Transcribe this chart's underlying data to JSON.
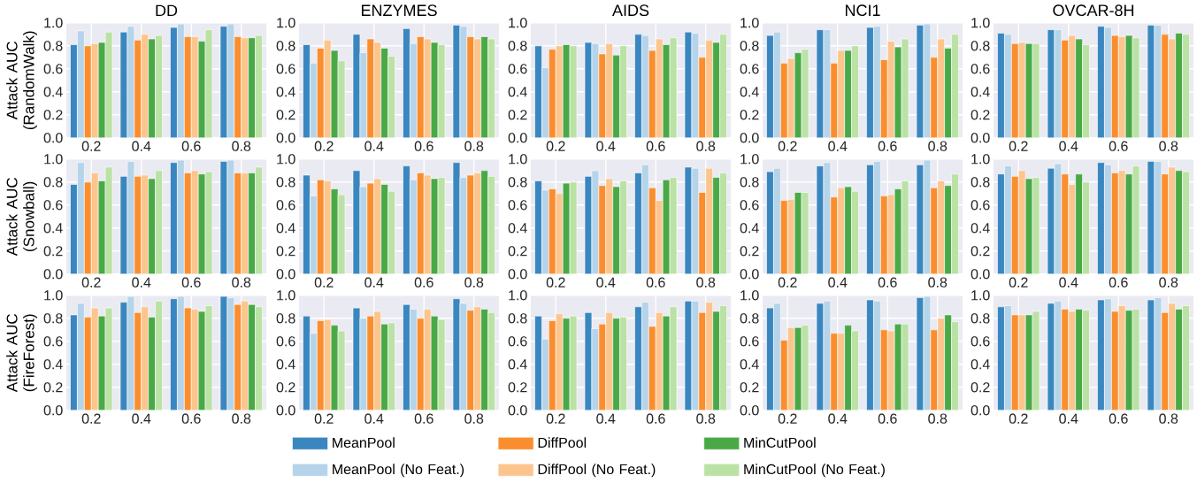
{
  "chart_data": [
    {
      "type": "bar",
      "title": "DD",
      "ylabel": "Attack AUC (RandomWalk)",
      "categories": [
        "0.2",
        "0.4",
        "0.6",
        "0.8"
      ],
      "ylim": [
        0,
        1
      ],
      "yticks": [
        {
          "value": 0,
          "label": "0.0"
        },
        {
          "value": 0.2,
          "label": "0.2"
        },
        {
          "value": 0.4,
          "label": "0.4"
        },
        {
          "value": 0.6,
          "label": "0.6"
        },
        {
          "value": 0.8,
          "label": "0.8"
        },
        {
          "value": 1,
          "label": "1.0"
        }
      ],
      "grid": true,
      "series": [
        {
          "color": "#3a87c0",
          "values": [
            0.81,
            0.92,
            0.96,
            0.97
          ]
        },
        {
          "color": "#b5d4ea",
          "values": [
            0.93,
            0.97,
            0.99,
            0.99
          ]
        },
        {
          "color": "#fa8e2e",
          "values": [
            0.8,
            0.85,
            0.88,
            0.88
          ]
        },
        {
          "color": "#fdc58e",
          "values": [
            0.82,
            0.9,
            0.88,
            0.87
          ]
        },
        {
          "color": "#4aa947",
          "values": [
            0.83,
            0.86,
            0.84,
            0.87
          ]
        },
        {
          "color": "#bbe2a5",
          "values": [
            0.92,
            0.89,
            0.94,
            0.89
          ]
        }
      ]
    },
    {
      "type": "bar",
      "title": "ENZYMES",
      "categories": [
        "0.2",
        "0.4",
        "0.6",
        "0.8"
      ],
      "ylim": [
        0,
        1
      ],
      "yticks": [
        {
          "value": 0,
          "label": "0.0"
        },
        {
          "value": 0.2,
          "label": "0.2"
        },
        {
          "value": 0.4,
          "label": "0.4"
        },
        {
          "value": 0.6,
          "label": "0.6"
        },
        {
          "value": 0.8,
          "label": "0.8"
        },
        {
          "value": 1,
          "label": "1.0"
        }
      ],
      "grid": true,
      "series": [
        {
          "color": "#3a87c0",
          "values": [
            0.81,
            0.9,
            0.95,
            0.98
          ]
        },
        {
          "color": "#b5d4ea",
          "values": [
            0.65,
            0.74,
            0.82,
            0.97
          ]
        },
        {
          "color": "#fa8e2e",
          "values": [
            0.78,
            0.86,
            0.88,
            0.88
          ]
        },
        {
          "color": "#fdc58e",
          "values": [
            0.85,
            0.83,
            0.86,
            0.86
          ]
        },
        {
          "color": "#4aa947",
          "values": [
            0.76,
            0.78,
            0.83,
            0.88
          ]
        },
        {
          "color": "#bbe2a5",
          "values": [
            0.67,
            0.71,
            0.81,
            0.86
          ]
        }
      ]
    },
    {
      "type": "bar",
      "title": "AIDS",
      "categories": [
        "0.2",
        "0.4",
        "0.6",
        "0.8"
      ],
      "ylim": [
        0,
        1
      ],
      "yticks": [
        {
          "value": 0,
          "label": "0.0"
        },
        {
          "value": 0.2,
          "label": "0.2"
        },
        {
          "value": 0.4,
          "label": "0.4"
        },
        {
          "value": 0.6,
          "label": "0.6"
        },
        {
          "value": 0.8,
          "label": "0.8"
        },
        {
          "value": 1,
          "label": "1.0"
        }
      ],
      "grid": true,
      "series": [
        {
          "color": "#3a87c0",
          "values": [
            0.8,
            0.83,
            0.9,
            0.92
          ]
        },
        {
          "color": "#b5d4ea",
          "values": [
            0.61,
            0.82,
            0.89,
            0.91
          ]
        },
        {
          "color": "#fa8e2e",
          "values": [
            0.77,
            0.73,
            0.76,
            0.7
          ]
        },
        {
          "color": "#fdc58e",
          "values": [
            0.8,
            0.82,
            0.86,
            0.85
          ]
        },
        {
          "color": "#4aa947",
          "values": [
            0.81,
            0.72,
            0.81,
            0.83
          ]
        },
        {
          "color": "#bbe2a5",
          "values": [
            0.8,
            0.8,
            0.87,
            0.9
          ]
        }
      ]
    },
    {
      "type": "bar",
      "title": "NCI1",
      "categories": [
        "0.2",
        "0.4",
        "0.6",
        "0.8"
      ],
      "ylim": [
        0,
        1
      ],
      "yticks": [
        {
          "value": 0,
          "label": "0.0"
        },
        {
          "value": 0.2,
          "label": "0.2"
        },
        {
          "value": 0.4,
          "label": "0.4"
        },
        {
          "value": 0.6,
          "label": "0.6"
        },
        {
          "value": 0.8,
          "label": "0.8"
        },
        {
          "value": 1,
          "label": "1.0"
        }
      ],
      "grid": true,
      "series": [
        {
          "color": "#3a87c0",
          "values": [
            0.89,
            0.94,
            0.96,
            0.98
          ]
        },
        {
          "color": "#b5d4ea",
          "values": [
            0.92,
            0.94,
            0.97,
            0.99
          ]
        },
        {
          "color": "#fa8e2e",
          "values": [
            0.65,
            0.65,
            0.68,
            0.7
          ]
        },
        {
          "color": "#fdc58e",
          "values": [
            0.69,
            0.76,
            0.84,
            0.86
          ]
        },
        {
          "color": "#4aa947",
          "values": [
            0.74,
            0.76,
            0.79,
            0.78
          ]
        },
        {
          "color": "#bbe2a5",
          "values": [
            0.77,
            0.8,
            0.86,
            0.9
          ]
        }
      ]
    },
    {
      "type": "bar",
      "title": "OVCAR-8H",
      "categories": [
        "0.2",
        "0.4",
        "0.6",
        "0.8"
      ],
      "ylim": [
        0,
        1
      ],
      "yticks": [
        {
          "value": 0,
          "label": "0.0"
        },
        {
          "value": 0.2,
          "label": "0.2"
        },
        {
          "value": 0.4,
          "label": "0.4"
        },
        {
          "value": 0.6,
          "label": "0.6"
        },
        {
          "value": 0.8,
          "label": "0.8"
        },
        {
          "value": 1,
          "label": "1.0"
        }
      ],
      "grid": true,
      "series": [
        {
          "color": "#3a87c0",
          "values": [
            0.91,
            0.94,
            0.97,
            0.98
          ]
        },
        {
          "color": "#b5d4ea",
          "values": [
            0.9,
            0.94,
            0.96,
            0.98
          ]
        },
        {
          "color": "#fa8e2e",
          "values": [
            0.82,
            0.85,
            0.89,
            0.9
          ]
        },
        {
          "color": "#fdc58e",
          "values": [
            0.83,
            0.89,
            0.88,
            0.86
          ]
        },
        {
          "color": "#4aa947",
          "values": [
            0.82,
            0.86,
            0.89,
            0.91
          ]
        },
        {
          "color": "#bbe2a5",
          "values": [
            0.82,
            0.81,
            0.87,
            0.9
          ]
        }
      ]
    },
    {
      "type": "bar",
      "ylabel": "Attack AUC (Snowball)",
      "categories": [
        "0.2",
        "0.4",
        "0.6",
        "0.8"
      ],
      "ylim": [
        0,
        1
      ],
      "yticks": [
        {
          "value": 0,
          "label": "0.0"
        },
        {
          "value": 0.2,
          "label": "0.2"
        },
        {
          "value": 0.4,
          "label": "0.4"
        },
        {
          "value": 0.6,
          "label": "0.6"
        },
        {
          "value": 0.8,
          "label": "0.8"
        },
        {
          "value": 1,
          "label": "1.0"
        }
      ],
      "grid": true,
      "series": [
        {
          "color": "#3a87c0",
          "values": [
            0.78,
            0.85,
            0.97,
            0.98
          ]
        },
        {
          "color": "#b5d4ea",
          "values": [
            0.97,
            0.98,
            0.99,
            0.99
          ]
        },
        {
          "color": "#fa8e2e",
          "values": [
            0.8,
            0.85,
            0.88,
            0.88
          ]
        },
        {
          "color": "#fdc58e",
          "values": [
            0.88,
            0.86,
            0.9,
            0.88
          ]
        },
        {
          "color": "#4aa947",
          "values": [
            0.81,
            0.83,
            0.87,
            0.88
          ]
        },
        {
          "color": "#bbe2a5",
          "values": [
            0.93,
            0.9,
            0.89,
            0.93
          ]
        }
      ]
    },
    {
      "type": "bar",
      "categories": [
        "0.2",
        "0.4",
        "0.6",
        "0.8"
      ],
      "ylim": [
        0,
        1
      ],
      "yticks": [
        {
          "value": 0,
          "label": "0.0"
        },
        {
          "value": 0.2,
          "label": "0.2"
        },
        {
          "value": 0.4,
          "label": "0.4"
        },
        {
          "value": 0.6,
          "label": "0.6"
        },
        {
          "value": 0.8,
          "label": "0.8"
        },
        {
          "value": 1,
          "label": "1.0"
        }
      ],
      "grid": true,
      "series": [
        {
          "color": "#3a87c0",
          "values": [
            0.86,
            0.9,
            0.94,
            0.97
          ]
        },
        {
          "color": "#b5d4ea",
          "values": [
            0.68,
            0.76,
            0.82,
            0.84
          ]
        },
        {
          "color": "#fa8e2e",
          "values": [
            0.82,
            0.79,
            0.88,
            0.86
          ]
        },
        {
          "color": "#fdc58e",
          "values": [
            0.81,
            0.83,
            0.86,
            0.88
          ]
        },
        {
          "color": "#4aa947",
          "values": [
            0.74,
            0.78,
            0.83,
            0.9
          ]
        },
        {
          "color": "#bbe2a5",
          "values": [
            0.69,
            0.72,
            0.84,
            0.85
          ]
        }
      ]
    },
    {
      "type": "bar",
      "categories": [
        "0.2",
        "0.4",
        "0.6",
        "0.8"
      ],
      "ylim": [
        0,
        1
      ],
      "yticks": [
        {
          "value": 0,
          "label": "0.0"
        },
        {
          "value": 0.2,
          "label": "0.2"
        },
        {
          "value": 0.4,
          "label": "0.4"
        },
        {
          "value": 0.6,
          "label": "0.6"
        },
        {
          "value": 0.8,
          "label": "0.8"
        },
        {
          "value": 1,
          "label": "1.0"
        }
      ],
      "grid": true,
      "series": [
        {
          "color": "#3a87c0",
          "values": [
            0.81,
            0.85,
            0.88,
            0.93
          ]
        },
        {
          "color": "#b5d4ea",
          "values": [
            0.73,
            0.9,
            0.95,
            0.92
          ]
        },
        {
          "color": "#fa8e2e",
          "values": [
            0.74,
            0.77,
            0.75,
            0.71
          ]
        },
        {
          "color": "#fdc58e",
          "values": [
            0.7,
            0.83,
            0.64,
            0.92
          ]
        },
        {
          "color": "#4aa947",
          "values": [
            0.79,
            0.76,
            0.82,
            0.84
          ]
        },
        {
          "color": "#bbe2a5",
          "values": [
            0.8,
            0.81,
            0.84,
            0.88
          ]
        }
      ]
    },
    {
      "type": "bar",
      "categories": [
        "0.2",
        "0.4",
        "0.6",
        "0.8"
      ],
      "ylim": [
        0,
        1
      ],
      "yticks": [
        {
          "value": 0,
          "label": "0.0"
        },
        {
          "value": 0.2,
          "label": "0.2"
        },
        {
          "value": 0.4,
          "label": "0.4"
        },
        {
          "value": 0.6,
          "label": "0.6"
        },
        {
          "value": 0.8,
          "label": "0.8"
        },
        {
          "value": 1,
          "label": "1.0"
        }
      ],
      "grid": true,
      "series": [
        {
          "color": "#3a87c0",
          "values": [
            0.89,
            0.94,
            0.95,
            0.95
          ]
        },
        {
          "color": "#b5d4ea",
          "values": [
            0.92,
            0.97,
            0.98,
            0.99
          ]
        },
        {
          "color": "#fa8e2e",
          "values": [
            0.64,
            0.67,
            0.68,
            0.75
          ]
        },
        {
          "color": "#fdc58e",
          "values": [
            0.65,
            0.75,
            0.69,
            0.81
          ]
        },
        {
          "color": "#4aa947",
          "values": [
            0.71,
            0.76,
            0.74,
            0.77
          ]
        },
        {
          "color": "#bbe2a5",
          "values": [
            0.71,
            0.72,
            0.81,
            0.87
          ]
        }
      ]
    },
    {
      "type": "bar",
      "categories": [
        "0.2",
        "0.4",
        "0.6",
        "0.8"
      ],
      "ylim": [
        0,
        1
      ],
      "yticks": [
        {
          "value": 0,
          "label": "0.0"
        },
        {
          "value": 0.2,
          "label": "0.2"
        },
        {
          "value": 0.4,
          "label": "0.4"
        },
        {
          "value": 0.6,
          "label": "0.6"
        },
        {
          "value": 0.8,
          "label": "0.8"
        },
        {
          "value": 1,
          "label": "1.0"
        }
      ],
      "grid": true,
      "series": [
        {
          "color": "#3a87c0",
          "values": [
            0.87,
            0.92,
            0.97,
            0.98
          ]
        },
        {
          "color": "#b5d4ea",
          "values": [
            0.94,
            0.96,
            0.95,
            0.98
          ]
        },
        {
          "color": "#fa8e2e",
          "values": [
            0.85,
            0.87,
            0.88,
            0.87
          ]
        },
        {
          "color": "#fdc58e",
          "values": [
            0.9,
            0.78,
            0.9,
            0.93
          ]
        },
        {
          "color": "#4aa947",
          "values": [
            0.83,
            0.87,
            0.87,
            0.9
          ]
        },
        {
          "color": "#bbe2a5",
          "values": [
            0.84,
            0.8,
            0.94,
            0.89
          ]
        }
      ]
    },
    {
      "type": "bar",
      "ylabel": "Attack AUC (FireForest)",
      "categories": [
        "0.2",
        "0.4",
        "0.6",
        "0.8"
      ],
      "ylim": [
        0,
        1
      ],
      "yticks": [
        {
          "value": 0,
          "label": "0.0"
        },
        {
          "value": 0.2,
          "label": "0.2"
        },
        {
          "value": 0.4,
          "label": "0.4"
        },
        {
          "value": 0.6,
          "label": "0.6"
        },
        {
          "value": 0.8,
          "label": "0.8"
        },
        {
          "value": 1,
          "label": "1.0"
        }
      ],
      "grid": true,
      "series": [
        {
          "color": "#3a87c0",
          "values": [
            0.83,
            0.94,
            0.97,
            0.99
          ]
        },
        {
          "color": "#b5d4ea",
          "values": [
            0.93,
            0.99,
            0.99,
            0.98
          ]
        },
        {
          "color": "#fa8e2e",
          "values": [
            0.81,
            0.85,
            0.89,
            0.92
          ]
        },
        {
          "color": "#fdc58e",
          "values": [
            0.89,
            0.9,
            0.88,
            0.95
          ]
        },
        {
          "color": "#4aa947",
          "values": [
            0.82,
            0.81,
            0.86,
            0.92
          ]
        },
        {
          "color": "#bbe2a5",
          "values": [
            0.89,
            0.95,
            0.91,
            0.9
          ]
        }
      ]
    },
    {
      "type": "bar",
      "categories": [
        "0.2",
        "0.4",
        "0.6",
        "0.8"
      ],
      "ylim": [
        0,
        1
      ],
      "yticks": [
        {
          "value": 0,
          "label": "0.0"
        },
        {
          "value": 0.2,
          "label": "0.2"
        },
        {
          "value": 0.4,
          "label": "0.4"
        },
        {
          "value": 0.6,
          "label": "0.6"
        },
        {
          "value": 0.8,
          "label": "0.8"
        },
        {
          "value": 1,
          "label": "1.0"
        }
      ],
      "grid": true,
      "series": [
        {
          "color": "#3a87c0",
          "values": [
            0.82,
            0.89,
            0.92,
            0.97
          ]
        },
        {
          "color": "#b5d4ea",
          "values": [
            0.67,
            0.8,
            0.88,
            0.93
          ]
        },
        {
          "color": "#fa8e2e",
          "values": [
            0.78,
            0.82,
            0.8,
            0.87
          ]
        },
        {
          "color": "#fdc58e",
          "values": [
            0.79,
            0.86,
            0.88,
            0.9
          ]
        },
        {
          "color": "#4aa947",
          "values": [
            0.74,
            0.75,
            0.82,
            0.88
          ]
        },
        {
          "color": "#bbe2a5",
          "values": [
            0.69,
            0.76,
            0.79,
            0.85
          ]
        }
      ]
    },
    {
      "type": "bar",
      "categories": [
        "0.2",
        "0.4",
        "0.6",
        "0.8"
      ],
      "ylim": [
        0,
        1
      ],
      "yticks": [
        {
          "value": 0,
          "label": "0.0"
        },
        {
          "value": 0.2,
          "label": "0.2"
        },
        {
          "value": 0.4,
          "label": "0.4"
        },
        {
          "value": 0.6,
          "label": "0.6"
        },
        {
          "value": 0.8,
          "label": "0.8"
        },
        {
          "value": 1,
          "label": "1.0"
        }
      ],
      "grid": true,
      "legend": "bottom",
      "series": [
        {
          "name": "MeanPool",
          "color": "#3a87c0",
          "values": [
            0.82,
            0.85,
            0.9,
            0.95
          ]
        },
        {
          "name": "MeanPool (No Feat.)",
          "color": "#b5d4ea",
          "values": [
            0.62,
            0.71,
            0.94,
            0.95
          ]
        },
        {
          "name": "DiffPool",
          "color": "#fa8e2e",
          "values": [
            0.78,
            0.75,
            0.73,
            0.85
          ]
        },
        {
          "name": "DiffPool (No Feat.)",
          "color": "#fdc58e",
          "values": [
            0.84,
            0.85,
            0.85,
            0.94
          ]
        },
        {
          "name": "MinCutPool",
          "color": "#4aa947",
          "values": [
            0.8,
            0.8,
            0.82,
            0.86
          ]
        },
        {
          "name": "MinCutPool (No Feat.)",
          "color": "#bbe2a5",
          "values": [
            0.82,
            0.81,
            0.9,
            0.91
          ]
        }
      ]
    },
    {
      "type": "bar",
      "categories": [
        "0.2",
        "0.4",
        "0.6",
        "0.8"
      ],
      "ylim": [
        0,
        1
      ],
      "yticks": [
        {
          "value": 0,
          "label": "0.0"
        },
        {
          "value": 0.2,
          "label": "0.2"
        },
        {
          "value": 0.4,
          "label": "0.4"
        },
        {
          "value": 0.6,
          "label": "0.6"
        },
        {
          "value": 0.8,
          "label": "0.8"
        },
        {
          "value": 1,
          "label": "1.0"
        }
      ],
      "grid": true,
      "series": [
        {
          "color": "#3a87c0",
          "values": [
            0.89,
            0.93,
            0.96,
            0.98
          ]
        },
        {
          "color": "#b5d4ea",
          "values": [
            0.93,
            0.95,
            0.95,
            0.99
          ]
        },
        {
          "color": "#fa8e2e",
          "values": [
            0.61,
            0.67,
            0.7,
            0.7
          ]
        },
        {
          "color": "#fdc58e",
          "values": [
            0.72,
            0.67,
            0.69,
            0.8
          ]
        },
        {
          "color": "#4aa947",
          "values": [
            0.72,
            0.74,
            0.75,
            0.83
          ]
        },
        {
          "color": "#bbe2a5",
          "values": [
            0.74,
            0.69,
            0.75,
            0.77
          ]
        }
      ]
    },
    {
      "type": "bar",
      "categories": [
        "0.2",
        "0.4",
        "0.6",
        "0.8"
      ],
      "ylim": [
        0,
        1
      ],
      "yticks": [
        {
          "value": 0,
          "label": "0.0"
        },
        {
          "value": 0.2,
          "label": "0.2"
        },
        {
          "value": 0.4,
          "label": "0.4"
        },
        {
          "value": 0.6,
          "label": "0.6"
        },
        {
          "value": 0.8,
          "label": "0.8"
        },
        {
          "value": 1,
          "label": "1.0"
        }
      ],
      "grid": true,
      "series": [
        {
          "color": "#3a87c0",
          "values": [
            0.9,
            0.93,
            0.96,
            0.96
          ]
        },
        {
          "color": "#b5d4ea",
          "values": [
            0.91,
            0.95,
            0.97,
            0.98
          ]
        },
        {
          "color": "#fa8e2e",
          "values": [
            0.83,
            0.88,
            0.86,
            0.85
          ]
        },
        {
          "color": "#fdc58e",
          "values": [
            0.83,
            0.86,
            0.91,
            0.93
          ]
        },
        {
          "color": "#4aa947",
          "values": [
            0.83,
            0.88,
            0.87,
            0.88
          ]
        },
        {
          "color": "#bbe2a5",
          "values": [
            0.86,
            0.87,
            0.88,
            0.91
          ]
        }
      ]
    }
  ]
}
